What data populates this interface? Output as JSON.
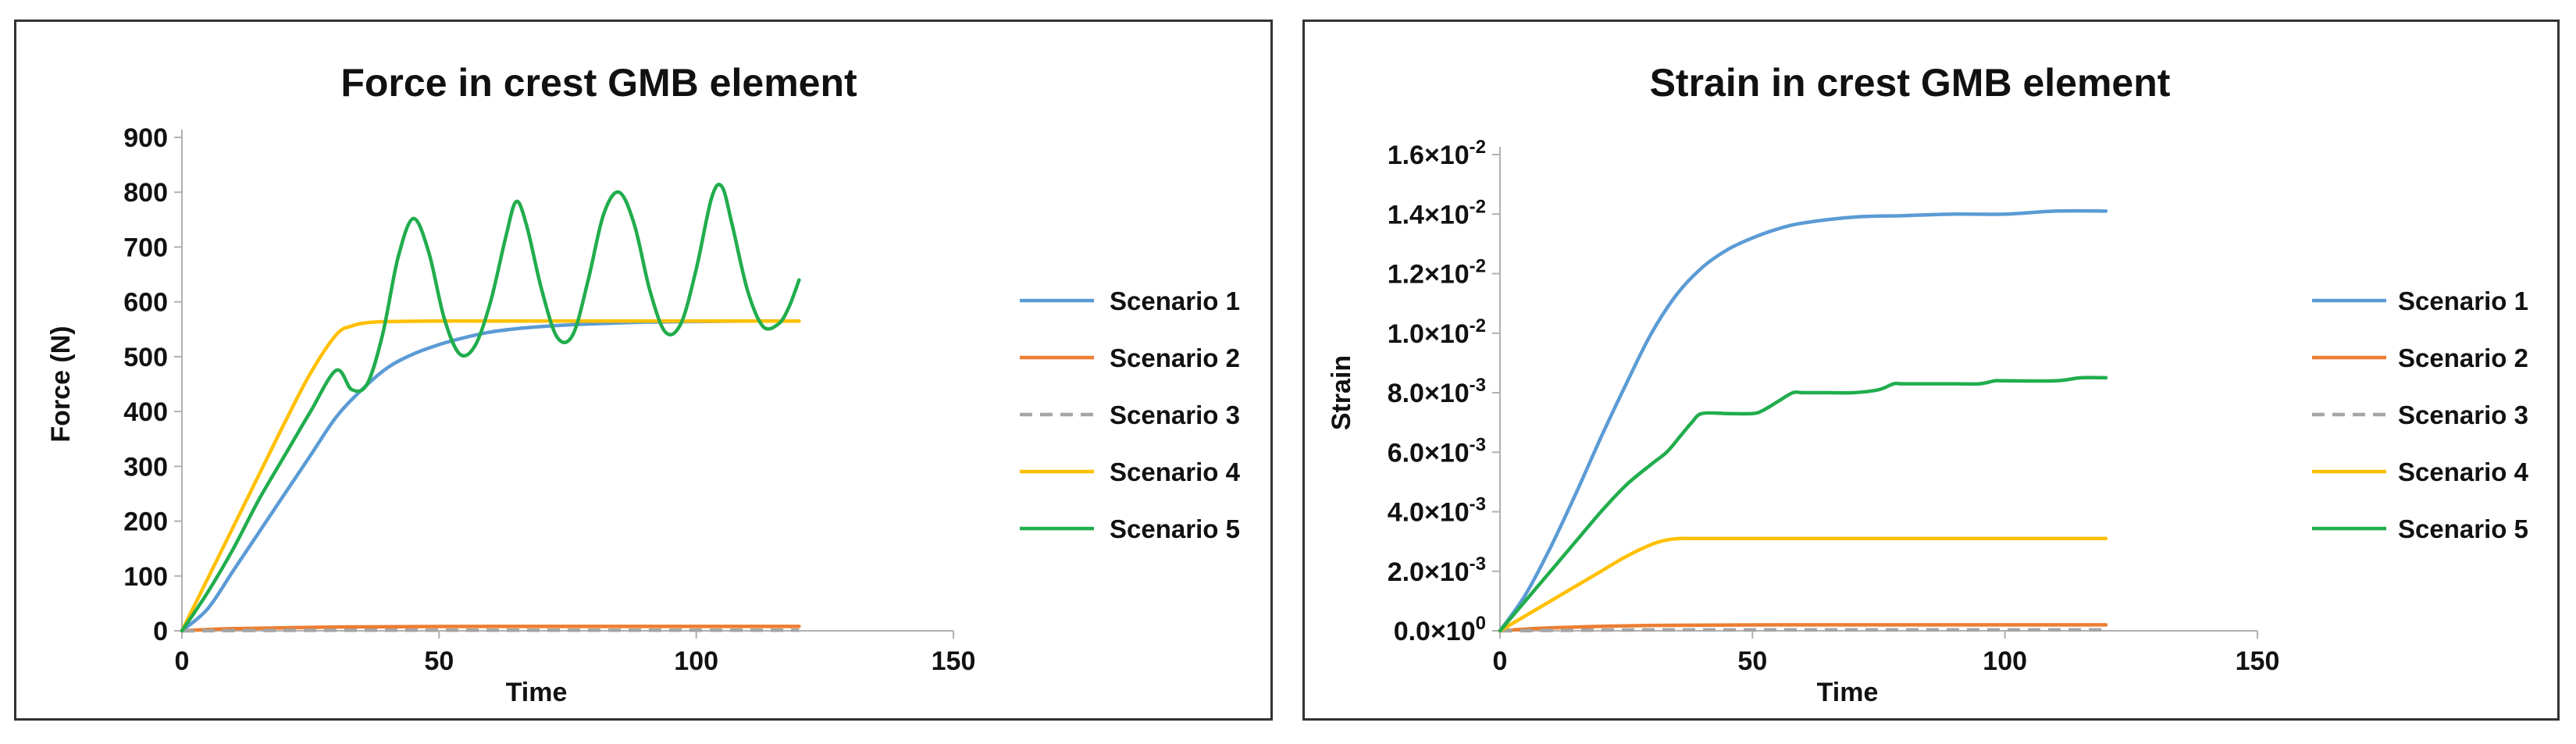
{
  "chart_data": [
    {
      "type": "line",
      "title": "Force in crest GMB element",
      "xlabel": "Time",
      "ylabel": "Force (N)",
      "xlim": [
        0,
        150
      ],
      "ylim": [
        0,
        900
      ],
      "xticks": [
        0,
        50,
        100,
        150
      ],
      "xtick_labels": [
        "0",
        "50",
        "100",
        "150"
      ],
      "yticks": [
        0,
        100,
        200,
        300,
        400,
        500,
        600,
        700,
        800,
        900
      ],
      "ytick_labels": [
        "0",
        "100",
        "200",
        "300",
        "400",
        "500",
        "600",
        "700",
        "800",
        "900"
      ],
      "grid": false,
      "legend": "right",
      "series": [
        {
          "name": "Scenario 1",
          "color": "#5b9bd5",
          "dash": "",
          "x": [
            0,
            5,
            10,
            15,
            20,
            25,
            30,
            35,
            40,
            45,
            50,
            55,
            60,
            65,
            70,
            75,
            80,
            90,
            100,
            110,
            120
          ],
          "y": [
            0,
            40,
            110,
            180,
            250,
            320,
            390,
            440,
            480,
            505,
            522,
            535,
            545,
            551,
            555,
            558,
            560,
            563,
            564,
            565,
            565
          ]
        },
        {
          "name": "Scenario 2",
          "color": "#ed7d31",
          "dash": "",
          "x": [
            0,
            10,
            30,
            60,
            90,
            120
          ],
          "y": [
            0,
            4,
            7,
            8,
            8,
            8
          ]
        },
        {
          "name": "Scenario 3",
          "color": "#a5a5a5",
          "dash": "16 10",
          "x": [
            0,
            30,
            60,
            90,
            120
          ],
          "y": [
            0,
            1,
            1,
            1,
            1
          ]
        },
        {
          "name": "Scenario 4",
          "color": "#ffc000",
          "dash": "",
          "x": [
            0,
            5,
            10,
            15,
            20,
            25,
            30,
            33,
            36,
            40,
            50,
            60,
            80,
            100,
            120
          ],
          "y": [
            0,
            95,
            190,
            285,
            380,
            470,
            540,
            556,
            562,
            564,
            565,
            565,
            565,
            565,
            565
          ]
        },
        {
          "name": "Scenario 5",
          "color": "#21ad4d",
          "dash": "",
          "x": [
            0,
            5,
            10,
            15,
            20,
            25,
            30,
            33,
            36,
            39,
            42,
            45,
            48,
            51,
            54,
            57,
            60,
            63,
            65,
            67,
            70,
            73,
            76,
            79,
            82,
            85,
            88,
            91,
            94,
            97,
            100,
            103,
            105,
            107,
            110,
            113,
            116,
            118,
            120
          ],
          "y": [
            0,
            70,
            150,
            240,
            320,
            400,
            475,
            440,
            450,
            540,
            680,
            752,
            690,
            570,
            505,
            520,
            600,
            720,
            783,
            740,
            620,
            535,
            540,
            640,
            760,
            800,
            740,
            620,
            545,
            560,
            660,
            790,
            810,
            740,
            620,
            555,
            560,
            590,
            640
          ]
        }
      ]
    },
    {
      "type": "line",
      "title": "Strain in crest GMB element",
      "xlabel": "Time",
      "ylabel": "Strain",
      "xlim": [
        0,
        150
      ],
      "ylim": [
        0,
        0.016
      ],
      "xticks": [
        0,
        50,
        100,
        150
      ],
      "xtick_labels": [
        "0",
        "50",
        "100",
        "150"
      ],
      "yticks": [
        0,
        0.002,
        0.004,
        0.006,
        0.008,
        0.01,
        0.012,
        0.014,
        0.016
      ],
      "ytick_labels": [
        {
          "mant": "0.0",
          "exp": "0"
        },
        {
          "mant": "2.0",
          "exp": "-3"
        },
        {
          "mant": "4.0",
          "exp": "-3"
        },
        {
          "mant": "6.0",
          "exp": "-3"
        },
        {
          "mant": "8.0",
          "exp": "-3"
        },
        {
          "mant": "1.0",
          "exp": "-2"
        },
        {
          "mant": "1.2",
          "exp": "-2"
        },
        {
          "mant": "1.4",
          "exp": "-2"
        },
        {
          "mant": "1.6",
          "exp": "-2"
        }
      ],
      "tick_times": "×10",
      "grid": false,
      "legend": "right",
      "series": [
        {
          "name": "Scenario 1",
          "color": "#5b9bd5",
          "dash": "",
          "x": [
            0,
            5,
            10,
            15,
            20,
            25,
            30,
            35,
            40,
            45,
            50,
            55,
            60,
            70,
            80,
            90,
            100,
            110,
            120
          ],
          "y": [
            0,
            0.0012,
            0.0028,
            0.0046,
            0.0065,
            0.0083,
            0.01,
            0.0113,
            0.0122,
            0.0128,
            0.0132,
            0.0135,
            0.0137,
            0.0139,
            0.01395,
            0.014,
            0.014,
            0.0141,
            0.0141
          ]
        },
        {
          "name": "Scenario 2",
          "color": "#ed7d31",
          "dash": "",
          "x": [
            0,
            10,
            30,
            60,
            90,
            120
          ],
          "y": [
            0,
            0.0001,
            0.00018,
            0.0002,
            0.0002,
            0.0002
          ]
        },
        {
          "name": "Scenario 3",
          "color": "#a5a5a5",
          "dash": "16 10",
          "x": [
            0,
            30,
            60,
            90,
            120
          ],
          "y": [
            0,
            3e-05,
            3e-05,
            3e-05,
            3e-05
          ]
        },
        {
          "name": "Scenario 4",
          "color": "#ffc000",
          "dash": "",
          "x": [
            0,
            5,
            10,
            15,
            20,
            25,
            30,
            33,
            36,
            40,
            60,
            80,
            100,
            120
          ],
          "y": [
            0,
            0.0005,
            0.001,
            0.0015,
            0.002,
            0.0025,
            0.0029,
            0.00305,
            0.0031,
            0.0031,
            0.0031,
            0.0031,
            0.0031,
            0.0031
          ]
        },
        {
          "name": "Scenario 5",
          "color": "#21ad4d",
          "dash": "",
          "x": [
            0,
            5,
            10,
            15,
            20,
            25,
            30,
            33,
            36,
            38,
            40,
            45,
            50,
            52,
            55,
            58,
            60,
            65,
            70,
            75,
            78,
            80,
            90,
            95,
            98,
            100,
            110,
            115,
            120
          ],
          "y": [
            0,
            0.001,
            0.002,
            0.003,
            0.004,
            0.0049,
            0.0056,
            0.006,
            0.0066,
            0.007,
            0.0073,
            0.0073,
            0.0073,
            0.0074,
            0.0077,
            0.008,
            0.008,
            0.008,
            0.008,
            0.0081,
            0.0083,
            0.0083,
            0.0083,
            0.0083,
            0.0084,
            0.0084,
            0.0084,
            0.0085,
            0.0085
          ]
        }
      ]
    }
  ]
}
